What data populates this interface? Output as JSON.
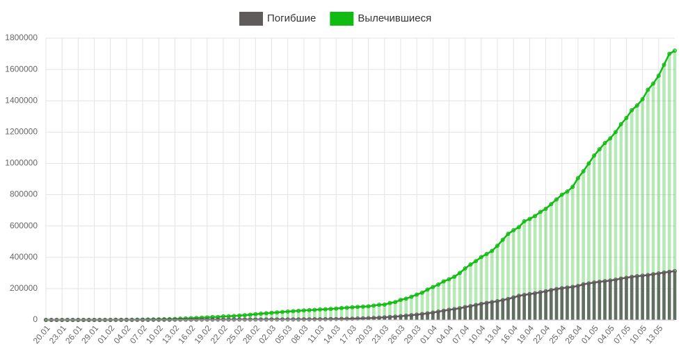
{
  "chart_data": {
    "type": "bar_line",
    "categories": [
      "20.01",
      null,
      null,
      "23.01",
      null,
      null,
      "26.01",
      null,
      null,
      "29.01",
      null,
      null,
      "01.02",
      null,
      null,
      "04.02",
      null,
      null,
      "07.02",
      null,
      null,
      "10.02",
      null,
      null,
      "13.02",
      null,
      null,
      "16.02",
      null,
      null,
      "19.02",
      null,
      null,
      "22.02",
      null,
      null,
      "25.02",
      null,
      null,
      "28.02",
      null,
      null,
      "02.03",
      null,
      null,
      "05.03",
      null,
      null,
      "08.03",
      null,
      null,
      "11.03",
      null,
      null,
      "14.03",
      null,
      null,
      "17.03",
      null,
      null,
      "20.03",
      null,
      null,
      "23.03",
      null,
      null,
      "26.03",
      null,
      null,
      "29.03",
      null,
      null,
      "01.04",
      null,
      null,
      "04.04",
      null,
      null,
      "07.04",
      null,
      null,
      "10.04",
      null,
      null,
      "13.04",
      null,
      null,
      "16.04",
      null,
      null,
      "19.04",
      null,
      null,
      "22.04",
      null,
      null,
      "25.04",
      null,
      null,
      "28.04",
      null,
      null,
      "01.05",
      null,
      null,
      "04.05",
      null,
      null,
      "07.05",
      null,
      null,
      "10.05",
      null,
      null,
      "13.05",
      null,
      null,
      null
    ],
    "series": [
      {
        "name": "Погибшие",
        "color": "#5f5b5b",
        "values": [
          6,
          9,
          17,
          18,
          26,
          42,
          56,
          82,
          131,
          133,
          171,
          213,
          259,
          362,
          426,
          492,
          564,
          634,
          719,
          806,
          906,
          1013,
          1113,
          1118,
          1371,
          1523,
          1666,
          1770,
          1868,
          2007,
          2122,
          2247,
          2251,
          2458,
          2469,
          2629,
          2708,
          2770,
          2814,
          2872,
          2941,
          2996,
          3085,
          3160,
          3254,
          3348,
          3460,
          3558,
          3803,
          3996,
          4262,
          4615,
          4720,
          5404,
          5819,
          6440,
          7126,
          7905,
          8733,
          9867,
          11299,
          12973,
          14623,
          16497,
          18615,
          21181,
          23970,
          27198,
          30652,
          33925,
          37582,
          42107,
          46809,
          52983,
          58787,
          64606,
          69374,
          74565,
          81865,
          88338,
          95455,
          102525,
          108502,
          114090,
          119482,
          126611,
          134176,
          143800,
          153822,
          159510,
          165044,
          169986,
          176583,
          183027,
          190858,
          197159,
          202846,
          206544,
          211167,
          217153,
          227638,
          233388,
          238650,
          243808,
          247470,
          251537,
          257239,
          263855,
          269567,
          274898,
          279311,
          282709,
          286330,
          291942,
          297197,
          302418,
          307666,
          311847
        ]
      },
      {
        "name": "Вылечившиеся",
        "color": "#11bb11",
        "values": [
          0,
          0,
          28,
          30,
          36,
          39,
          52,
          61,
          107,
          126,
          143,
          222,
          284,
          472,
          623,
          852,
          1124,
          1487,
          2011,
          2616,
          3244,
          3946,
          4683,
          5150,
          6295,
          8058,
          9395,
          10865,
          12583,
          14352,
          16121,
          18177,
          18890,
          22886,
          23394,
          25227,
          27905,
          30384,
          33277,
          36711,
          39782,
          42716,
          45602,
          48228,
          51170,
          53796,
          55865,
          58358,
          60694,
          62494,
          64404,
          67003,
          68324,
          70251,
          72624,
          76034,
          78088,
          80840,
          83207,
          84854,
          87256,
          91676,
          97243,
          98335,
          108000,
          114000,
          128000,
          136000,
          148000,
          162000,
          174000,
          194000,
          210000,
          226000,
          246000,
          260000,
          276000,
          300000,
          329000,
          354000,
          376000,
          402000,
          421000,
          441000,
          474000,
          512000,
          550000,
          573000,
          593000,
          630000,
          645000,
          664000,
          690000,
          710000,
          740000,
          770000,
          800000,
          820000,
          850000,
          906000,
          950000,
          1000000,
          1050000,
          1090000,
          1130000,
          1160000,
          1200000,
          1250000,
          1290000,
          1340000,
          1370000,
          1410000,
          1470000,
          1510000,
          1560000,
          1630000,
          1700000,
          1720000
        ]
      }
    ],
    "ylim": [
      0,
      1800000
    ],
    "yticks": [
      0,
      200000,
      400000,
      600000,
      800000,
      1000000,
      1200000,
      1400000,
      1600000,
      1800000
    ],
    "grid": true,
    "legend": "top"
  }
}
